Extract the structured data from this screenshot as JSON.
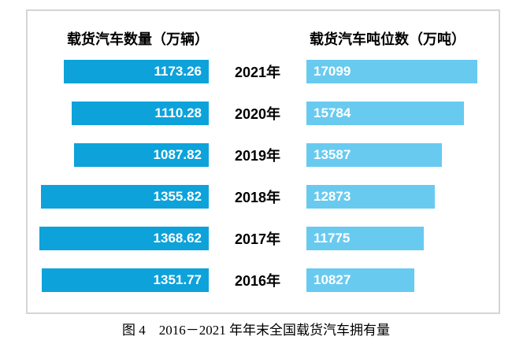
{
  "chart_data": {
    "type": "bar",
    "orientation": "horizontal-diverging",
    "title": "图 4　2016－2021 年年末全国载货汽车拥有量",
    "left_header": "载货汽车数量（万辆）",
    "right_header": "载货汽车吨位数（万吨）",
    "categories": [
      "2021年",
      "2020年",
      "2019年",
      "2018年",
      "2017年",
      "2016年"
    ],
    "series": [
      {
        "name": "载货汽车数量（万辆）",
        "side": "left",
        "values": [
          1173.26,
          1110.28,
          1087.82,
          1355.82,
          1368.62,
          1351.77
        ],
        "color": "#0da2da",
        "value_decimals": 2
      },
      {
        "name": "载货汽车吨位数（万吨）",
        "side": "right",
        "values": [
          17099,
          15784,
          13587,
          12873,
          11775,
          10827
        ],
        "color": "#69caf0",
        "value_decimals": 0
      }
    ],
    "legend": "none",
    "value_labels": "inside-bars",
    "value_label_color": "#ffffff",
    "border_color": "#d5d5d5",
    "background_color": "#ffffff"
  }
}
